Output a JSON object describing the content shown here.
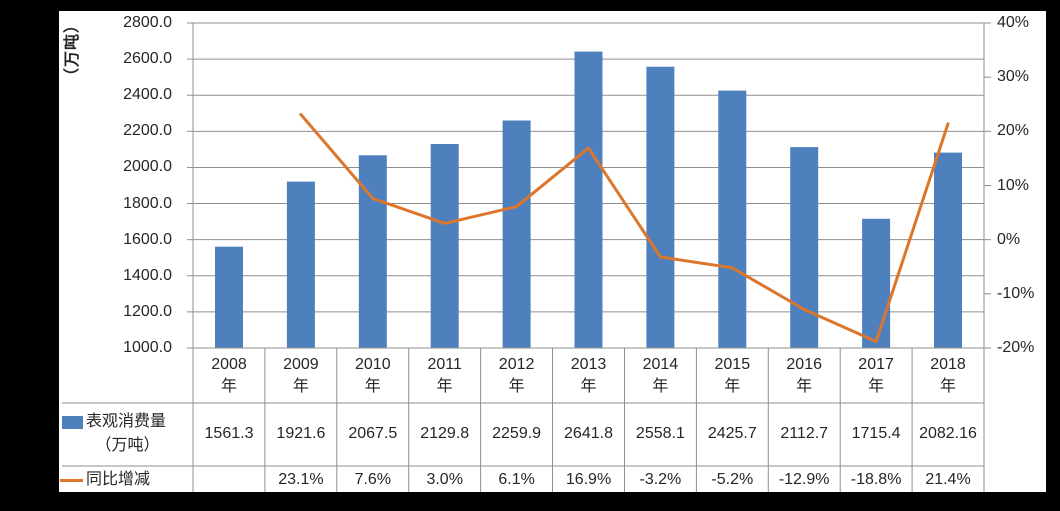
{
  "chart_data": {
    "type": "bar+line",
    "categories": [
      "2008",
      "2009",
      "2010",
      "2011",
      "2012",
      "2013",
      "2014",
      "2015",
      "2016",
      "2017",
      "2018"
    ],
    "category_suffix": "年",
    "series": [
      {
        "name": "表观消费量（万吨）",
        "type": "bar",
        "axis": "left",
        "color": "#4E80BD",
        "values": [
          1561.3,
          1921.6,
          2067.5,
          2129.8,
          2259.9,
          2641.8,
          2558.1,
          2425.7,
          2112.7,
          1715.4,
          2082.16
        ],
        "labels": [
          "1561.3",
          "1921.6",
          "2067.5",
          "2129.8",
          "2259.9",
          "2641.8",
          "2558.1",
          "2425.7",
          "2112.7",
          "1715.4",
          "2082.16"
        ],
        "legend_line1": "表观消费量",
        "legend_line2": "（万吨）"
      },
      {
        "name": "同比增减",
        "type": "line",
        "axis": "right",
        "color": "#DC762D",
        "values": [
          null,
          23.1,
          7.6,
          3.0,
          6.1,
          16.9,
          -3.2,
          -5.2,
          -12.9,
          -18.8,
          21.4
        ],
        "labels": [
          "",
          "23.1%",
          "7.6%",
          "3.0%",
          "6.1%",
          "16.9%",
          "-3.2%",
          "-5.2%",
          "-12.9%",
          "-18.8%",
          "21.4%"
        ],
        "legend_line1": "同比增减"
      }
    ],
    "left_axis": {
      "title": "（万吨）",
      "min": 1000,
      "max": 2800,
      "step": 200,
      "tick_labels": [
        "2800.0",
        "2600.0",
        "2400.0",
        "2200.0",
        "2000.0",
        "1800.0",
        "1600.0",
        "1400.0",
        "1200.0",
        "1000.0"
      ]
    },
    "right_axis": {
      "min": -20,
      "max": 40,
      "step": 10,
      "tick_labels": [
        "40%",
        "30%",
        "20%",
        "10%",
        "0%",
        "-10%",
        "-20%"
      ]
    },
    "grid": true,
    "legend_position": "table-left-column",
    "colors": {
      "gridline": "#8F8F8F",
      "text": "#262626",
      "plot_background": "#FFFFFF",
      "frame": "#000000"
    }
  }
}
